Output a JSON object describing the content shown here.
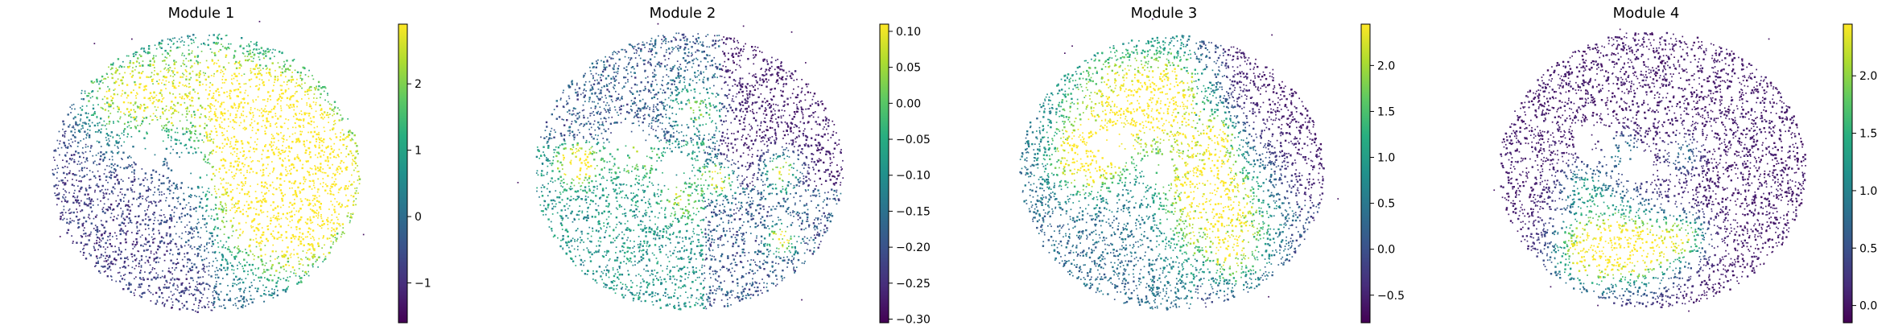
{
  "chart_data": [
    {
      "type": "scatter",
      "title": "Module 1",
      "colormap": "viridis",
      "colorbar": {
        "vmin": -1.6,
        "vmax": 2.9,
        "ticks": [
          -1,
          0,
          1,
          2
        ],
        "tick_labels": [
          "−1",
          "0",
          "1",
          "2"
        ]
      },
      "grid": false,
      "axes_visible": false
    },
    {
      "type": "scatter",
      "title": "Module 2",
      "colormap": "viridis",
      "colorbar": {
        "vmin": -0.305,
        "vmax": 0.11,
        "ticks": [
          0.1,
          0.05,
          0.0,
          -0.05,
          -0.1,
          -0.15,
          -0.2,
          -0.25,
          -0.3
        ],
        "tick_labels": [
          "0.10",
          "0.05",
          "0.00",
          "−0.05",
          "−0.10",
          "−0.15",
          "−0.20",
          "−0.25",
          "−0.30"
        ]
      },
      "grid": false,
      "axes_visible": false
    },
    {
      "type": "scatter",
      "title": "Module 3",
      "colormap": "viridis",
      "colorbar": {
        "vmin": -0.8,
        "vmax": 2.45,
        "ticks": [
          2.0,
          1.5,
          1.0,
          0.5,
          0.0,
          -0.5
        ],
        "tick_labels": [
          "2.0",
          "1.5",
          "1.0",
          "0.5",
          "0.0",
          "−0.5"
        ]
      },
      "grid": false,
      "axes_visible": false
    },
    {
      "type": "scatter",
      "title": "Module 4",
      "colormap": "viridis",
      "colorbar": {
        "vmin": -0.15,
        "vmax": 2.45,
        "ticks": [
          2.0,
          1.5,
          1.0,
          0.5,
          0.0
        ],
        "tick_labels": [
          "2.0",
          "1.5",
          "1.0",
          "0.5",
          "0.0"
        ]
      },
      "grid": false,
      "axes_visible": false
    }
  ]
}
